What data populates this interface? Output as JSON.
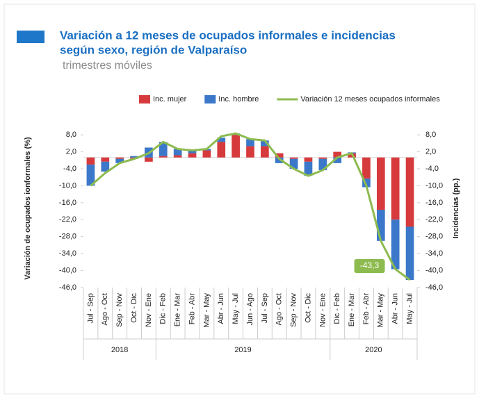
{
  "chart_data": {
    "type": "bar_line",
    "title": "Variación a 12 meses de ocupados informales e incidencias",
    "title_line2": "según sexo, región de Valparaíso",
    "subtitle": "trimestres móviles",
    "y_label": "Variación de ocupados ionformales (%)",
    "y2_label": "Incidencias (pp.)",
    "categories": [
      "Jul - Sep",
      "Ago - Oct",
      "Sep - Nov",
      "Oct - Dic",
      "Nov - Ene",
      "Dic - Feb",
      "Ene - Mar",
      "Feb - Abr",
      "Mar - May",
      "Abr - Jun",
      "May - Jul",
      "Jun - Ago",
      "Jul - Sep",
      "Ago - Oct",
      "Sep - Nov",
      "Oct - Dic",
      "Nov - Ene",
      "Dic - Feb",
      "Ene - Mar",
      "Feb - Abr",
      "Mar - May",
      "Abr - Jun",
      "May - Jul"
    ],
    "x_groups": [
      {
        "label": "2018",
        "count": 5
      },
      {
        "label": "2019",
        "count": 12
      },
      {
        "label": "2020",
        "count": 6
      }
    ],
    "series": [
      {
        "name": "Inc. mujer",
        "kind": "bar",
        "color": "#d63a3c",
        "values": [
          -2.5,
          -1.5,
          -0.5,
          -0.5,
          -1.5,
          0.5,
          0.8,
          1.5,
          2.5,
          5.5,
          8.0,
          4.0,
          4.0,
          1.5,
          -0.5,
          -1.5,
          -0.5,
          2.0,
          1.5,
          -7.5,
          -18.5,
          -22.0,
          -24.5
        ]
      },
      {
        "name": "Inc. hombre",
        "kind": "bar",
        "color": "#3b78c9",
        "values": [
          -7.5,
          -3.5,
          -1.5,
          0.5,
          3.5,
          5.0,
          2.2,
          1.0,
          0.5,
          1.5,
          0.5,
          2.5,
          2.0,
          -2.0,
          -3.5,
          -5.0,
          -4.0,
          -2.0,
          0.3,
          -3.0,
          -11.0,
          -17.5,
          -18.8
        ]
      },
      {
        "name": "Variación 12 meses ocupados informales",
        "kind": "line",
        "color": "#8dbb4f",
        "values": [
          -10,
          -5.5,
          -2,
          -0.5,
          1.5,
          5.5,
          3,
          2.5,
          3,
          7.5,
          8.5,
          6.5,
          6,
          -0.5,
          -4,
          -6.5,
          -4.5,
          0,
          1.5,
          -10,
          -29.5,
          -39.5,
          -43.3
        ],
        "value_labels": [
          null,
          null,
          null,
          null,
          null,
          null,
          null,
          null,
          null,
          null,
          null,
          null,
          null,
          null,
          null,
          null,
          null,
          null,
          null,
          null,
          null,
          null,
          "-43,3"
        ]
      }
    ],
    "ylim": [
      -46,
      10
    ],
    "yticks": [
      {
        "value": 8,
        "label": "8,0"
      },
      {
        "value": 2,
        "label": "2,0"
      },
      {
        "value": -4,
        "label": "-4,0"
      },
      {
        "value": -10,
        "label": "-10,0"
      },
      {
        "value": -16,
        "label": "-16,0"
      },
      {
        "value": -22,
        "label": "-22,0"
      },
      {
        "value": -28,
        "label": "-28,0"
      },
      {
        "value": -34,
        "label": "-34,0"
      },
      {
        "value": -40,
        "label": "-40,0"
      },
      {
        "value": -46,
        "label": "-46,0"
      }
    ],
    "y2lim": [
      -46,
      10
    ],
    "y2ticks": [
      {
        "value": 8,
        "label": "8,0"
      },
      {
        "value": 2,
        "label": "2,0"
      },
      {
        "value": -4,
        "label": "-4,0"
      },
      {
        "value": -10,
        "label": "-10,0"
      },
      {
        "value": -16,
        "label": "-16,0"
      },
      {
        "value": -22,
        "label": "-22,0"
      },
      {
        "value": -28,
        "label": "-28,0"
      },
      {
        "value": -34,
        "label": "-34,0"
      },
      {
        "value": -40,
        "label": "-40,0"
      },
      {
        "value": -46,
        "label": "-46,0"
      }
    ]
  }
}
